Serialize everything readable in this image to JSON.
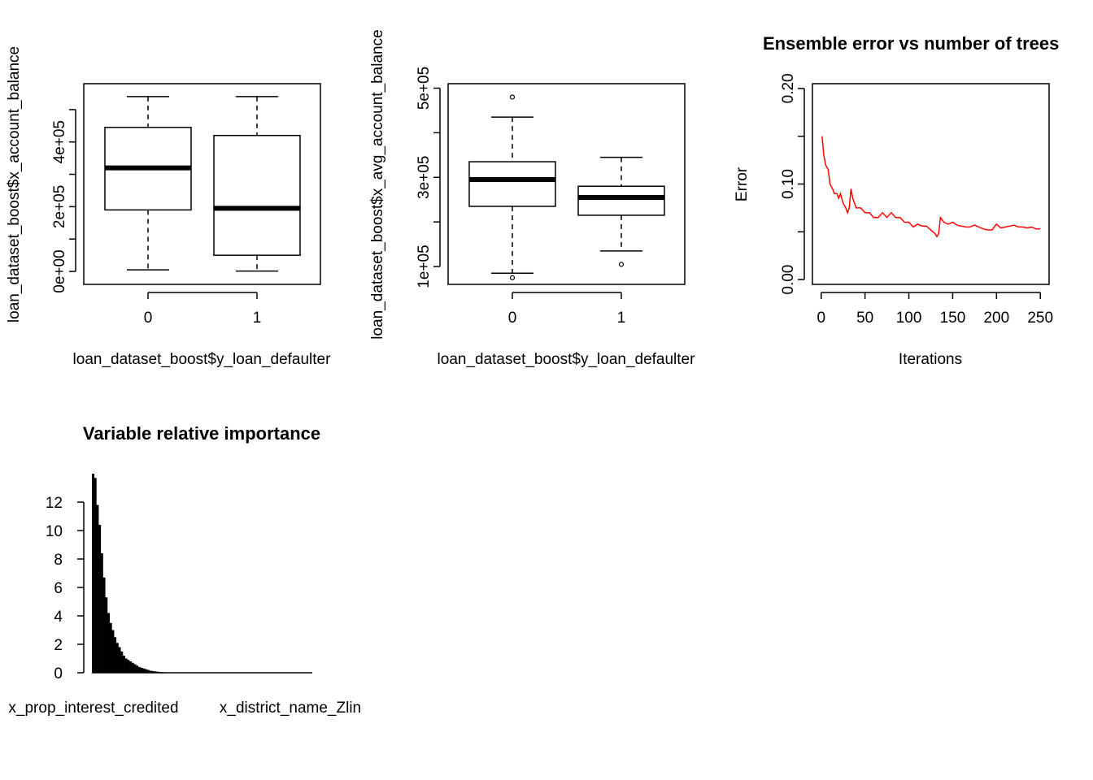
{
  "chart_data": [
    {
      "type": "boxplot",
      "xlabel": "loan_dataset_boost$y_loan_defaulter",
      "ylabel": "loan_dataset_boost$x_account_balance",
      "categories": [
        "0",
        "1"
      ],
      "y_ticks": [
        "0e+00",
        "2e+05",
        "4e+05"
      ],
      "y_tick_values": [
        0,
        200000,
        400000
      ],
      "ylim": [
        -40000,
        580000
      ],
      "boxes": [
        {
          "category": "0",
          "min": 5000,
          "q1": 190000,
          "median": 320000,
          "q3": 445000,
          "max": 540000,
          "outliers": []
        },
        {
          "category": "1",
          "min": 1000,
          "q1": 50000,
          "median": 195000,
          "q3": 420000,
          "max": 540000,
          "outliers": []
        }
      ]
    },
    {
      "type": "boxplot",
      "xlabel": "loan_dataset_boost$y_loan_defaulter",
      "ylabel": "loan_dataset_boost$x_avg_account_balance",
      "categories": [
        "0",
        "1"
      ],
      "y_ticks": [
        "1e+05",
        "3e+05",
        "5e+05"
      ],
      "y_tick_values": [
        100000,
        300000,
        500000
      ],
      "ylim": [
        60000,
        510000
      ],
      "boxes": [
        {
          "category": "0",
          "min": 85000,
          "q1": 235000,
          "median": 295000,
          "q3": 335000,
          "max": 435000,
          "outliers": [
            480000,
            75000
          ]
        },
        {
          "category": "1",
          "min": 135000,
          "q1": 215000,
          "median": 255000,
          "q3": 280000,
          "max": 345000,
          "outliers": [
            105000
          ]
        }
      ]
    },
    {
      "type": "line",
      "title": "Ensemble error vs number of trees",
      "xlabel": "Iterations",
      "ylabel": "Error",
      "x_ticks": [
        "0",
        "50",
        "100",
        "150",
        "200",
        "250"
      ],
      "x_tick_values": [
        0,
        50,
        100,
        150,
        200,
        250
      ],
      "y_ticks": [
        "0.00",
        "0.10",
        "0.20"
      ],
      "y_tick_values": [
        0,
        0.1,
        0.2
      ],
      "xlim": [
        -10,
        260
      ],
      "ylim": [
        -0.005,
        0.205
      ],
      "series_color": "#ff0000",
      "series": [
        {
          "x": [
            1,
            2,
            3,
            5,
            8,
            10,
            13,
            15,
            18,
            20,
            22,
            25,
            28,
            30,
            32,
            34,
            36,
            38,
            40,
            45,
            50,
            55,
            60,
            65,
            70,
            75,
            80,
            85,
            90,
            95,
            100,
            105,
            110,
            115,
            120,
            125,
            130,
            132,
            134,
            136,
            140,
            145,
            150,
            155,
            160,
            165,
            170,
            175,
            180,
            185,
            190,
            195,
            200,
            205,
            210,
            215,
            220,
            225,
            230,
            235,
            240,
            245,
            250
          ],
          "y": [
            0.15,
            0.14,
            0.13,
            0.12,
            0.115,
            0.1,
            0.095,
            0.09,
            0.09,
            0.085,
            0.09,
            0.08,
            0.075,
            0.07,
            0.075,
            0.095,
            0.085,
            0.08,
            0.075,
            0.075,
            0.07,
            0.07,
            0.065,
            0.065,
            0.07,
            0.065,
            0.07,
            0.065,
            0.065,
            0.06,
            0.06,
            0.055,
            0.058,
            0.056,
            0.056,
            0.052,
            0.048,
            0.045,
            0.048,
            0.065,
            0.06,
            0.058,
            0.06,
            0.057,
            0.056,
            0.055,
            0.055,
            0.057,
            0.055,
            0.053,
            0.052,
            0.052,
            0.058,
            0.054,
            0.055,
            0.056,
            0.057,
            0.055,
            0.055,
            0.054,
            0.055,
            0.053,
            0.053
          ]
        }
      ]
    },
    {
      "type": "bar",
      "title": "Variable relative importance",
      "categories_shown": [
        "x_prop_interest_credited",
        "x_district_name_Zlin"
      ],
      "y_ticks": [
        "0",
        "2",
        "4",
        "6",
        "8",
        "10",
        "12"
      ],
      "y_tick_values": [
        0,
        2,
        4,
        6,
        8,
        10,
        12
      ],
      "ylim": [
        0,
        14
      ],
      "values": [
        14.0,
        13.7,
        11.8,
        10.4,
        8.4,
        6.7,
        5.3,
        4.2,
        3.5,
        3.0,
        2.5,
        2.1,
        1.8,
        1.5,
        1.2,
        1.0,
        0.9,
        0.8,
        0.7,
        0.6,
        0.5,
        0.4,
        0.35,
        0.3,
        0.25,
        0.2,
        0.15,
        0.12,
        0.1,
        0.08,
        0.06,
        0.05,
        0.04,
        0.03,
        0.02,
        0.02,
        0.01,
        0.01,
        0.01,
        0.01,
        0,
        0,
        0,
        0,
        0,
        0,
        0,
        0,
        0,
        0,
        0,
        0,
        0,
        0,
        0,
        0,
        0,
        0,
        0,
        0,
        0,
        0,
        0,
        0,
        0,
        0,
        0,
        0,
        0,
        0,
        0,
        0,
        0,
        0,
        0,
        0,
        0,
        0,
        0,
        0,
        0,
        0,
        0,
        0,
        0,
        0,
        0,
        0,
        0,
        0,
        0,
        0,
        0,
        0,
        0,
        0,
        0,
        0,
        0,
        0
      ]
    }
  ]
}
